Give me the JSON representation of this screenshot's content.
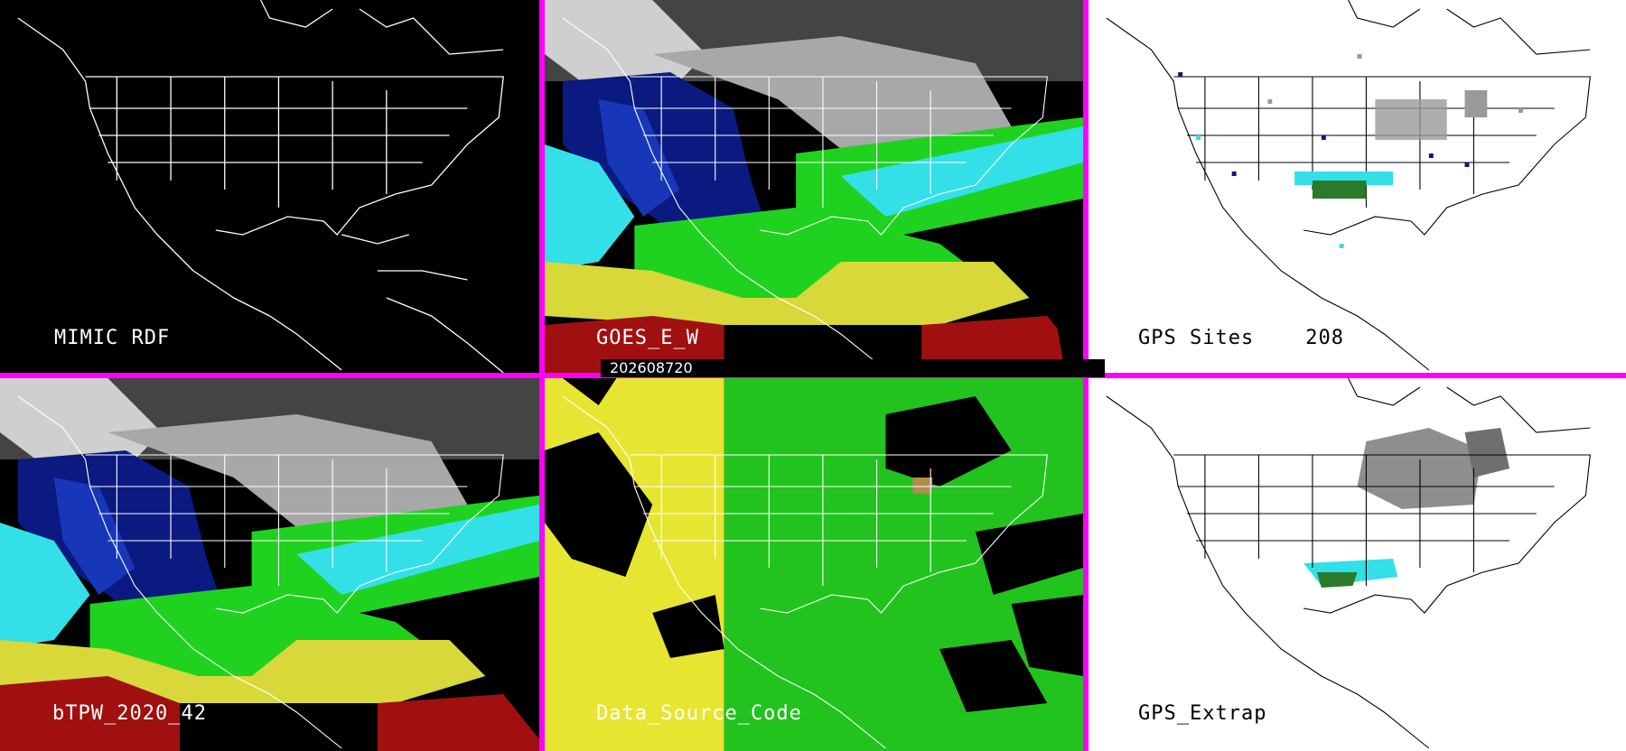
{
  "panels": {
    "mimic_rdf": {
      "label": "MIMIC RDF"
    },
    "goes_e_w": {
      "label": "GOES_E_W"
    },
    "gps_sites": {
      "label": "GPS Sites",
      "count": "208"
    },
    "btpw": {
      "label": "bTPW_2020_42"
    },
    "data_source_code": {
      "label": "Data_Source_Code"
    },
    "gps_extrap": {
      "label": "GPS_Extrap"
    }
  },
  "timestamp": "202608720",
  "colors": {
    "separator": "#ff00ff",
    "dark_bg": "#000000",
    "light_bg": "#ffffff",
    "map_lines_dark": "#ffffff",
    "map_lines_light": "#000000",
    "tpw_gray": "#9a9a9a",
    "tpw_navy": "#0a1a80",
    "tpw_cyan": "#33e0e8",
    "tpw_green": "#1fd21f",
    "tpw_yellow": "#d8d83a",
    "tpw_red": "#a01010",
    "source_yellow": "#e6e632",
    "source_green": "#22c31e"
  }
}
